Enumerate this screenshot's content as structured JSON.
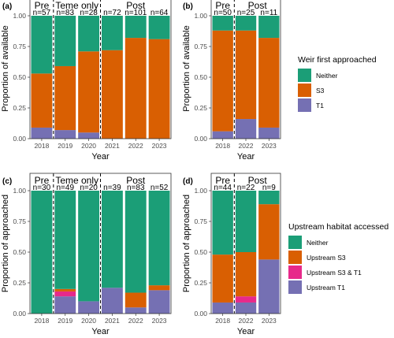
{
  "colors": {
    "Neither": "#1b9e77",
    "S3": "#d95f02",
    "T1": "#7570b3",
    "Upstream S3": "#d95f02",
    "Upstream S3 & T1": "#e7298a",
    "Upstream T1": "#7570b3"
  },
  "legends": [
    {
      "title": "Weir first approached",
      "items": [
        "Neither",
        "S3",
        "T1"
      ]
    },
    {
      "title": "Upstream habitat accessed",
      "items": [
        "Neither",
        "Upstream S3",
        "Upstream S3 & T1",
        "Upstream T1"
      ]
    }
  ],
  "chart_data": [
    {
      "type": "bar",
      "tag": "(a)",
      "xlabel": "Year",
      "ylabel": "Proportion of available",
      "ylim": [
        0,
        1
      ],
      "yticks": [
        "0.00",
        "0.25",
        "0.50",
        "0.75",
        "1.00"
      ],
      "categories": [
        "2018",
        "2019",
        "2020",
        "2021",
        "2022",
        "2023"
      ],
      "n_labels": [
        "n=57",
        "n=83",
        "n=28",
        "n=72",
        "n=101",
        "n=64"
      ],
      "periods": [
        {
          "label": "Pre",
          "from": 0,
          "to": 0
        },
        {
          "label": "Teme only",
          "from": 1,
          "to": 2
        },
        {
          "label": "Post",
          "from": 3,
          "to": 5
        }
      ],
      "dividers_after": [
        0,
        2
      ],
      "series": [
        {
          "name": "T1",
          "values": [
            0.09,
            0.07,
            0.05,
            0.0,
            0.0,
            0.0
          ]
        },
        {
          "name": "S3",
          "values": [
            0.44,
            0.52,
            0.66,
            0.72,
            0.82,
            0.81
          ]
        },
        {
          "name": "Neither",
          "values": [
            0.47,
            0.41,
            0.29,
            0.28,
            0.18,
            0.19
          ]
        }
      ]
    },
    {
      "type": "bar",
      "tag": "(b)",
      "xlabel": "Year",
      "ylabel": "Proportion of available",
      "ylim": [
        0,
        1
      ],
      "yticks": [
        "0.00",
        "0.25",
        "0.50",
        "0.75",
        "1.00"
      ],
      "categories": [
        "2018",
        "2022",
        "2023"
      ],
      "n_labels": [
        "n=50",
        "n=25",
        "n=11"
      ],
      "periods": [
        {
          "label": "Pre",
          "from": 0,
          "to": 0
        },
        {
          "label": "Post",
          "from": 1,
          "to": 2
        }
      ],
      "dividers_after": [
        0
      ],
      "series": [
        {
          "name": "T1",
          "values": [
            0.06,
            0.16,
            0.09
          ]
        },
        {
          "name": "S3",
          "values": [
            0.82,
            0.72,
            0.73
          ]
        },
        {
          "name": "Neither",
          "values": [
            0.12,
            0.12,
            0.18
          ]
        }
      ]
    },
    {
      "type": "bar",
      "tag": "(c)",
      "xlabel": "Year",
      "ylabel": "Proportion of approached",
      "ylim": [
        0,
        1
      ],
      "yticks": [
        "0.00",
        "0.25",
        "0.50",
        "0.75",
        "1.00"
      ],
      "categories": [
        "2018",
        "2019",
        "2020",
        "2021",
        "2022",
        "2023"
      ],
      "n_labels": [
        "n=30",
        "n=49",
        "n=20",
        "n=39",
        "n=83",
        "n=52"
      ],
      "periods": [
        {
          "label": "Pre",
          "from": 0,
          "to": 0
        },
        {
          "label": "Teme only",
          "from": 1,
          "to": 2
        },
        {
          "label": "Post",
          "from": 3,
          "to": 5
        }
      ],
      "dividers_after": [
        0,
        2
      ],
      "series": [
        {
          "name": "Upstream T1",
          "values": [
            0.0,
            0.14,
            0.1,
            0.21,
            0.05,
            0.19
          ]
        },
        {
          "name": "Upstream S3 & T1",
          "values": [
            0.0,
            0.04,
            0.0,
            0.0,
            0.0,
            0.0
          ]
        },
        {
          "name": "Upstream S3",
          "values": [
            0.0,
            0.02,
            0.0,
            0.0,
            0.12,
            0.04
          ]
        },
        {
          "name": "Neither",
          "values": [
            1.0,
            0.8,
            0.9,
            0.79,
            0.83,
            0.77
          ]
        }
      ]
    },
    {
      "type": "bar",
      "tag": "(d)",
      "xlabel": "Year",
      "ylabel": "Proportion of approached",
      "ylim": [
        0,
        1
      ],
      "yticks": [
        "0.00",
        "0.25",
        "0.50",
        "0.75",
        "1.00"
      ],
      "categories": [
        "2018",
        "2022",
        "2023"
      ],
      "n_labels": [
        "n=44",
        "n=22",
        "n=9"
      ],
      "periods": [
        {
          "label": "Pre",
          "from": 0,
          "to": 0
        },
        {
          "label": "Post",
          "from": 1,
          "to": 2
        }
      ],
      "dividers_after": [
        0
      ],
      "series": [
        {
          "name": "Upstream T1",
          "values": [
            0.09,
            0.09,
            0.44
          ]
        },
        {
          "name": "Upstream S3 & T1",
          "values": [
            0.0,
            0.05,
            0.0
          ]
        },
        {
          "name": "Upstream S3",
          "values": [
            0.39,
            0.36,
            0.45
          ]
        },
        {
          "name": "Neither",
          "values": [
            0.52,
            0.5,
            0.11
          ]
        }
      ]
    }
  ]
}
